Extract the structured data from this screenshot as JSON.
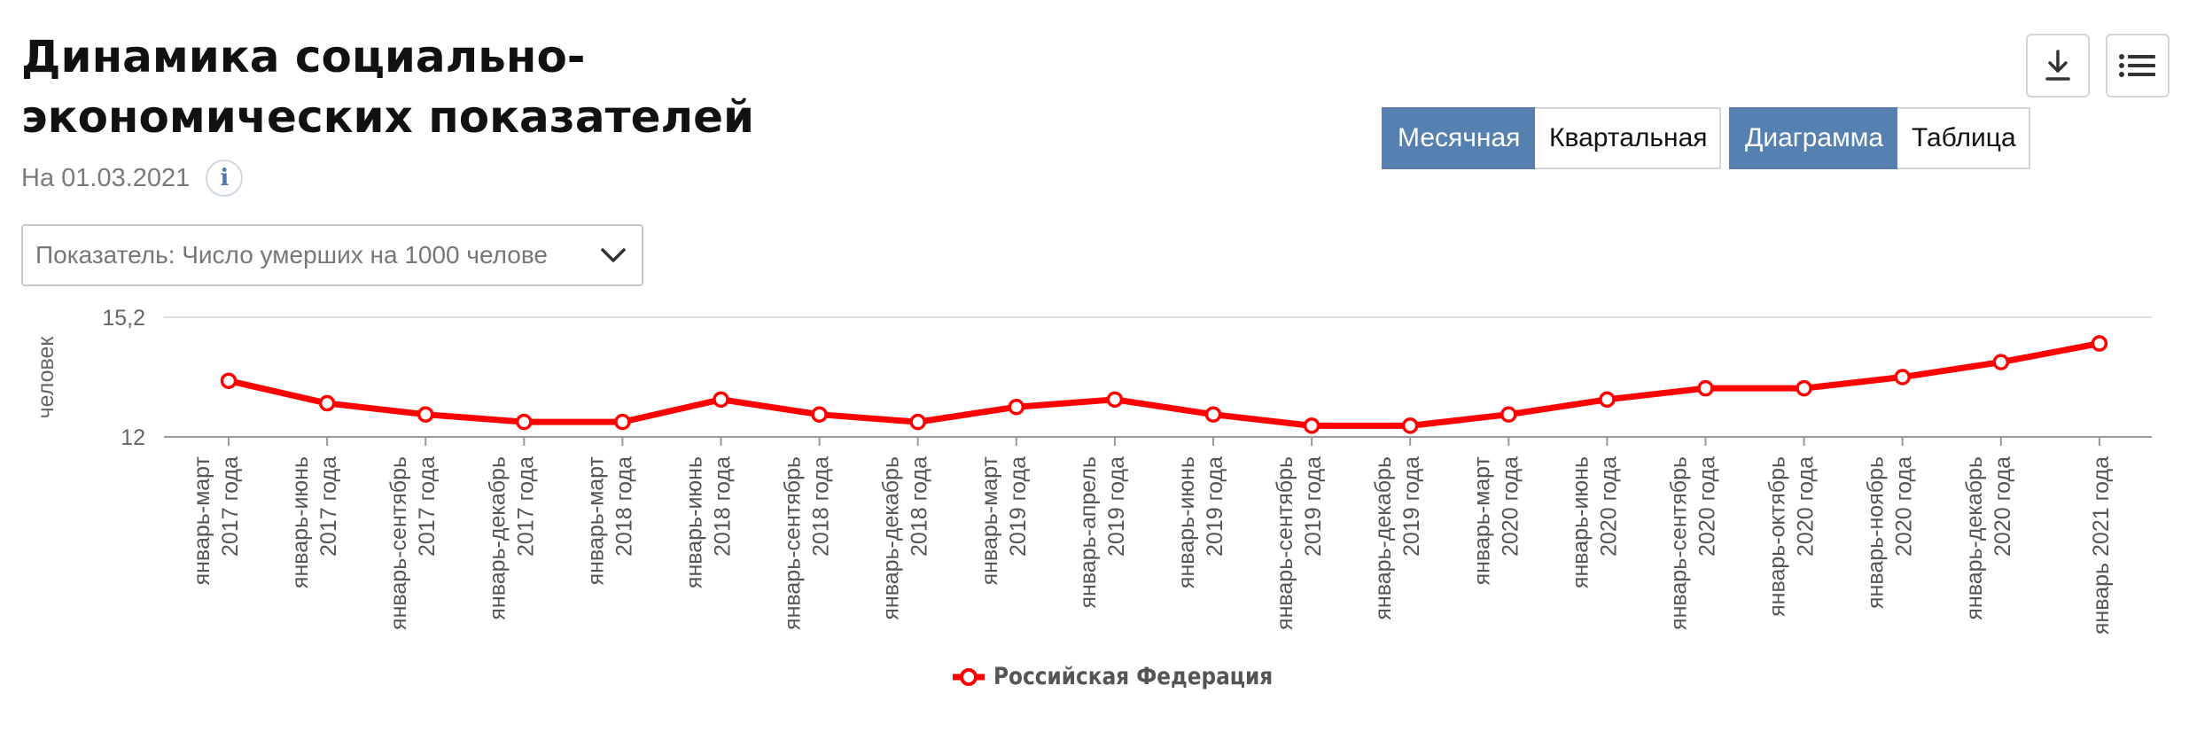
{
  "header": {
    "title": "Динамика социально-экономических показателей",
    "date": "На 01.03.2021",
    "info_icon": "info-icon"
  },
  "indicator_select": {
    "value": "Показатель: Число умерших на 1000 челове",
    "icon": "chevron-down-icon"
  },
  "toolbar": {
    "download_icon": "download-icon",
    "menu_icon": "menu-icon"
  },
  "period_toggle": {
    "monthly": "Месячная",
    "quarterly": "Квартальная",
    "active": "monthly"
  },
  "view_toggle": {
    "chart": "Диаграмма",
    "table": "Таблица",
    "active": "chart"
  },
  "colors": {
    "series": "#ff0000",
    "accent": "#5580b0",
    "grid": "#dddddd"
  },
  "chart_data": {
    "type": "line",
    "ylabel": "человек",
    "ylim": [
      12,
      15.2
    ],
    "yticks": [
      "15,2",
      "12"
    ],
    "grid": true,
    "legend_position": "bottom-center",
    "categories": [
      [
        "январь-март",
        "2017 года"
      ],
      [
        "январь-июнь",
        "2017 года"
      ],
      [
        "январь-сентябрь",
        "2017 года"
      ],
      [
        "январь-декабрь",
        "2017 года"
      ],
      [
        "январь-март",
        "2018 года"
      ],
      [
        "январь-июнь",
        "2018 года"
      ],
      [
        "январь-сентябрь",
        "2018 года"
      ],
      [
        "январь-декабрь",
        "2018 года"
      ],
      [
        "январь-март",
        "2019 года"
      ],
      [
        "январь-апрель",
        "2019 года"
      ],
      [
        "январь-июнь",
        "2019 года"
      ],
      [
        "январь-сентябрь",
        "2019 года"
      ],
      [
        "январь-декабрь",
        "2019 года"
      ],
      [
        "январь-март",
        "2020 года"
      ],
      [
        "январь-июнь",
        "2020 года"
      ],
      [
        "январь-сентябрь",
        "2020 года"
      ],
      [
        "январь-октябрь",
        "2020 года"
      ],
      [
        "январь-ноябрь",
        "2020 года"
      ],
      [
        "январь-декабрь",
        "2020 года"
      ],
      [
        "январь 2021 года"
      ]
    ],
    "series": [
      {
        "name": "Российская Федерация",
        "values": [
          13.5,
          12.9,
          12.6,
          12.4,
          12.4,
          13.0,
          12.6,
          12.4,
          12.8,
          13.0,
          12.6,
          12.3,
          12.3,
          12.6,
          13.0,
          13.3,
          13.3,
          13.6,
          14.0,
          14.5
        ]
      }
    ]
  }
}
